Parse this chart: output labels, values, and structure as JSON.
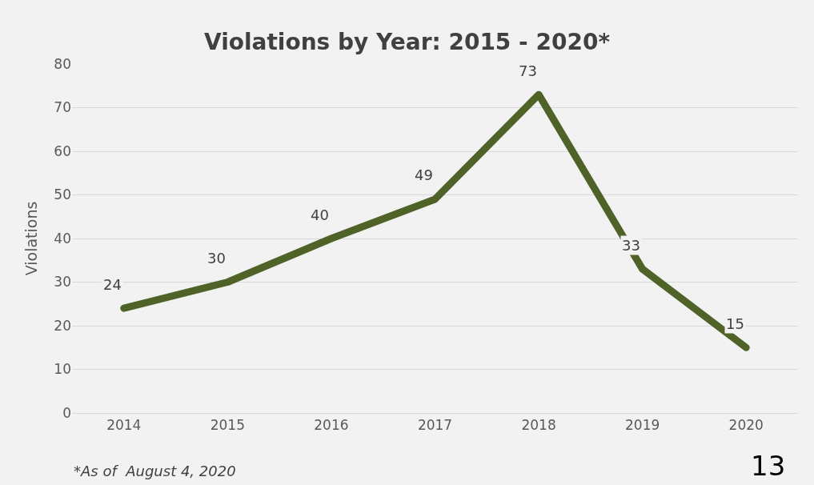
{
  "chart_data": {
    "type": "line",
    "title": "Violations by Year: 2015 - 2020*",
    "ylabel": "Violations",
    "categories": [
      "2014",
      "2015",
      "2016",
      "2017",
      "2018",
      "2019",
      "2020"
    ],
    "series": [
      {
        "color": "#4f6228",
        "values": [
          24,
          30,
          40,
          49,
          73,
          33,
          15
        ]
      }
    ],
    "ylim": [
      0,
      80
    ],
    "yticks": [
      0,
      10,
      20,
      30,
      40,
      50,
      60,
      70,
      80
    ],
    "grid": "y",
    "data_labels": true,
    "marker": "none",
    "line_style": "solid",
    "annotations": [
      "*As of  August 4, 2020",
      "13"
    ]
  }
}
